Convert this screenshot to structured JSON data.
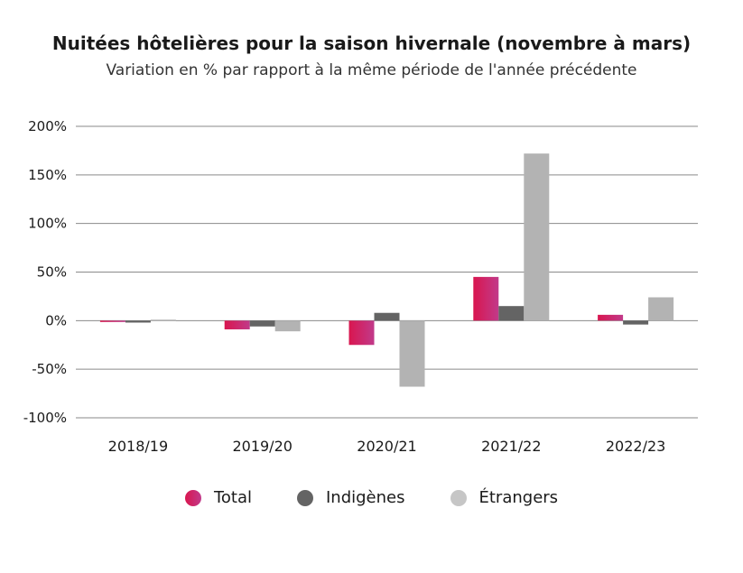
{
  "chart_data": {
    "type": "bar",
    "title": "Nuitées hôtelières pour la saison hivernale (novembre à mars)",
    "subtitle": "Variation en % par rapport à la même période de l'année précédente",
    "categories": [
      "2018/19",
      "2019/20",
      "2020/21",
      "2021/22",
      "2022/23"
    ],
    "series": [
      {
        "name": "Total",
        "values": [
          -1,
          -9,
          -25,
          45,
          6
        ],
        "color": "#d9164f",
        "color2": "#c13a8a"
      },
      {
        "name": "Indigènes",
        "values": [
          -2,
          -6,
          8,
          15,
          -4
        ],
        "color": "#646464"
      },
      {
        "name": "Étrangers",
        "values": [
          1,
          -11,
          -68,
          172,
          24
        ],
        "color": "#b3b3b3"
      }
    ],
    "ylim": [
      -100,
      200
    ],
    "yticks": [
      200,
      150,
      100,
      50,
      0,
      -50,
      -100
    ],
    "ytick_labels": [
      "200%",
      "150%",
      "100%",
      "50%",
      "0%",
      "-50%",
      "-100%"
    ],
    "grid": true,
    "legend_placement": "bottom-center",
    "legend_colors": [
      "#d9164f",
      "#646464",
      "#c6c6c6"
    ]
  }
}
